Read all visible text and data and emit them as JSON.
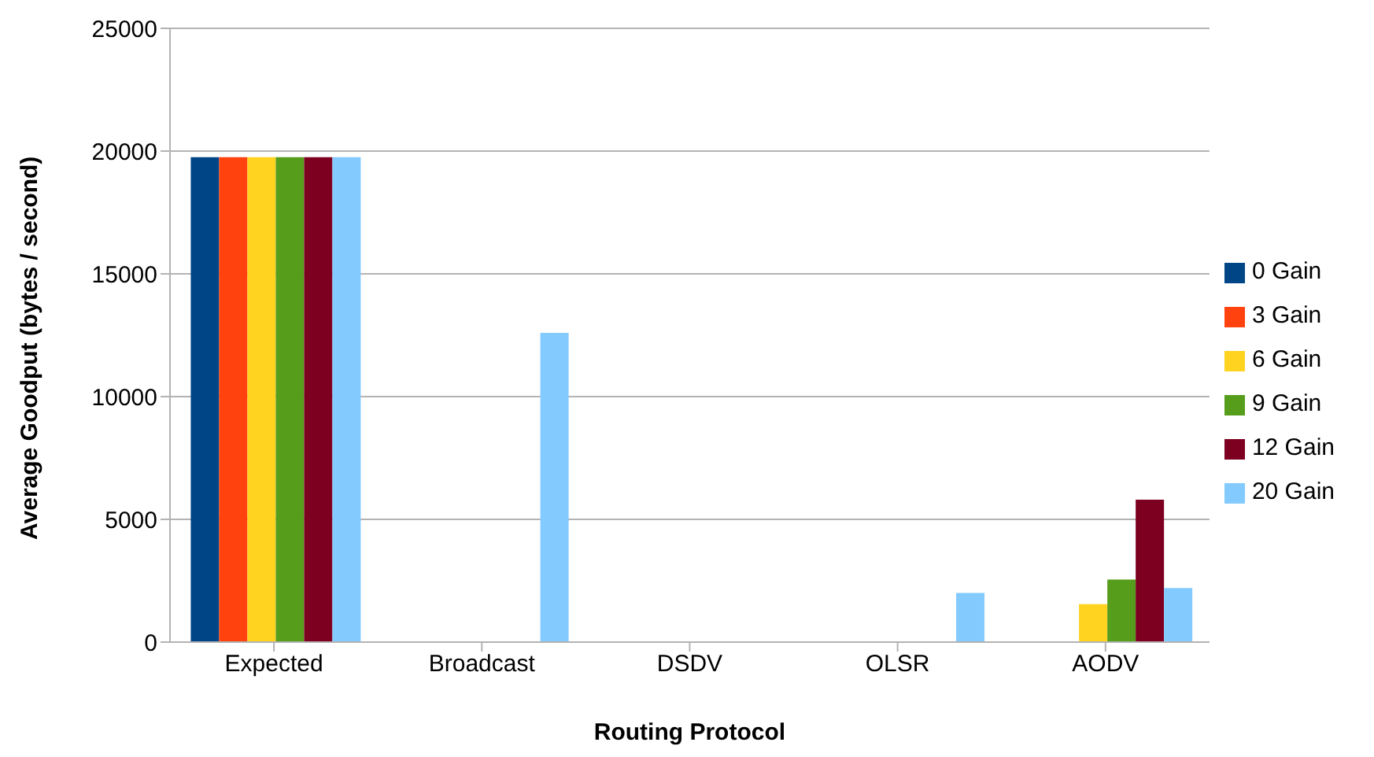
{
  "chart_data": {
    "type": "bar",
    "xlabel": "Routing Protocol",
    "ylabel": "Average Goodput (bytes / second)",
    "categories": [
      "Expected",
      "Broadcast",
      "DSDV",
      "OLSR",
      "AODV"
    ],
    "series": [
      {
        "name": "0 Gain",
        "color": "#004586",
        "values": [
          19750,
          0,
          0,
          0,
          0
        ]
      },
      {
        "name": "3 Gain",
        "color": "#ff420e",
        "values": [
          19750,
          0,
          0,
          0,
          0
        ]
      },
      {
        "name": "6 Gain",
        "color": "#ffd320",
        "values": [
          19750,
          0,
          0,
          0,
          1550
        ]
      },
      {
        "name": "9 Gain",
        "color": "#579d1c",
        "values": [
          19750,
          0,
          0,
          0,
          2550
        ]
      },
      {
        "name": "12 Gain",
        "color": "#7e0021",
        "values": [
          19750,
          0,
          0,
          0,
          5800
        ]
      },
      {
        "name": "20 Gain",
        "color": "#83caff",
        "values": [
          19750,
          12600,
          0,
          2000,
          2200
        ]
      }
    ],
    "ylim": [
      0,
      25000
    ],
    "yticks": [
      0,
      5000,
      10000,
      15000,
      20000,
      25000
    ],
    "grid": "y",
    "legend": "right"
  }
}
